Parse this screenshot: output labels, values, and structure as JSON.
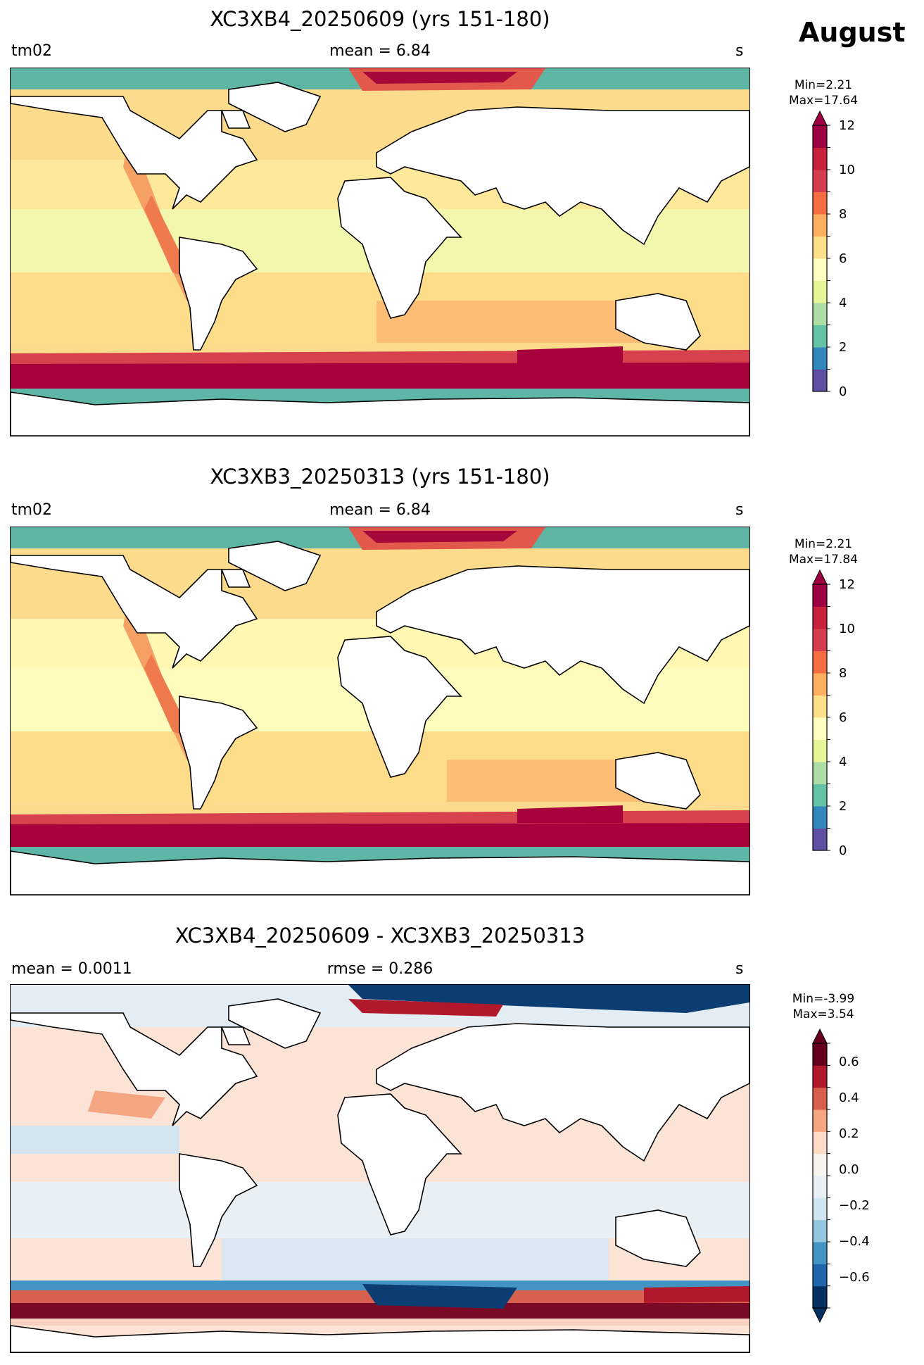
{
  "figure": {
    "month": "August"
  },
  "panels": [
    {
      "title": "XC3XB4_20250609 (yrs 151-180)",
      "left": "tm02",
      "center": "mean = 6.84",
      "right": "s",
      "min_label": "Min=2.21",
      "max_label": "Max=17.64",
      "colorbar": {
        "ticks": [
          "0",
          "2",
          "4",
          "6",
          "8",
          "10",
          "12"
        ],
        "colors": [
          "#5e4fa2",
          "#3288bd",
          "#66c2a5",
          "#abdda4",
          "#e6f598",
          "#ffffbf",
          "#fee08b",
          "#fdae61",
          "#f46d43",
          "#d53e4f",
          "#c9203e",
          "#9e0142"
        ]
      }
    },
    {
      "title": "XC3XB3_20250313 (yrs 151-180)",
      "left": "tm02",
      "center": "mean = 6.84",
      "right": "s",
      "min_label": "Min=2.21",
      "max_label": "Max=17.84",
      "colorbar": {
        "ticks": [
          "0",
          "2",
          "4",
          "6",
          "8",
          "10",
          "12"
        ],
        "colors": [
          "#5e4fa2",
          "#3288bd",
          "#66c2a5",
          "#abdda4",
          "#e6f598",
          "#ffffbf",
          "#fee08b",
          "#fdae61",
          "#f46d43",
          "#d53e4f",
          "#c9203e",
          "#9e0142"
        ]
      }
    },
    {
      "title": "XC3XB4_20250609 - XC3XB3_20250313",
      "left": "mean = 0.0011",
      "center": "rmse = 0.286",
      "right": "s",
      "min_label": "Min=-3.99",
      "max_label": "Max=3.54",
      "colorbar": {
        "ticks": [
          "−0.6",
          "−0.4",
          "−0.2",
          "0.0",
          "0.2",
          "0.4",
          "0.6"
        ],
        "colors": [
          "#053061",
          "#2166ac",
          "#4393c3",
          "#92c5de",
          "#d1e5f0",
          "#e8eff5",
          "#f7f3ee",
          "#fddbc7",
          "#f4a582",
          "#d6604d",
          "#b2182b",
          "#67001f"
        ]
      }
    }
  ]
}
